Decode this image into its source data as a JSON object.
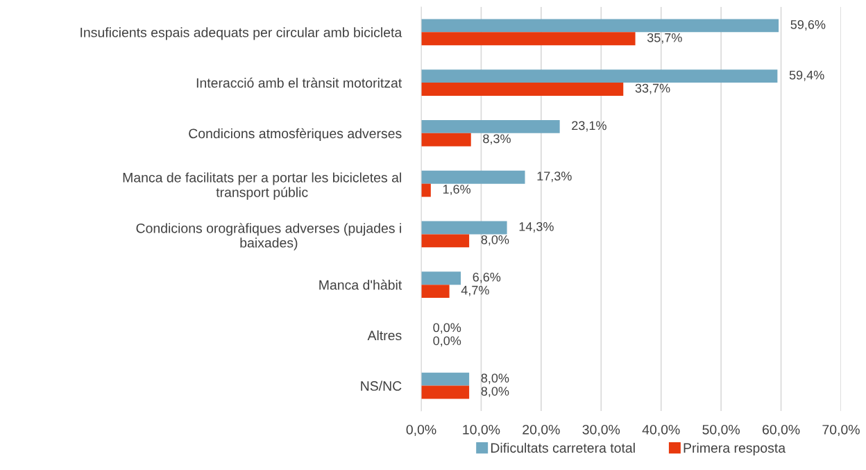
{
  "chart_data": {
    "type": "bar",
    "orientation": "horizontal",
    "categories": [
      "Insuficients espais adequats per circular amb bicicleta",
      "Interacció amb el trànsit motoritzat",
      "Condicions atmosfèriques adverses",
      "Manca de facilitats per a portar les bicicletes al\ntransport públic",
      "Condicions orogràfiques adverses (pujades i\nbaixades)",
      "Manca d'hàbit",
      "Altres",
      "NS/NC"
    ],
    "series": [
      {
        "name": "Dificultats carretera total",
        "color": "#70a8c1",
        "values": [
          59.6,
          59.4,
          23.1,
          17.3,
          14.3,
          6.6,
          0.0,
          8.0
        ],
        "value_labels": [
          "59,6%",
          "59,4%",
          "23,1%",
          "17,3%",
          "14,3%",
          "6,6%",
          "0,0%",
          "8,0%"
        ]
      },
      {
        "name": "Primera resposta",
        "color": "#e8390e",
        "values": [
          35.7,
          33.7,
          8.3,
          1.6,
          8.0,
          4.7,
          0.0,
          8.0
        ],
        "value_labels": [
          "35,7%",
          "33,7%",
          "8,3%",
          "1,6%",
          "8,0%",
          "4,7%",
          "0,0%",
          "8,0%"
        ]
      }
    ],
    "xlim": [
      0,
      70
    ],
    "xticks": [
      {
        "value": 0,
        "label": "0,0%"
      },
      {
        "value": 10,
        "label": "10,0%"
      },
      {
        "value": 20,
        "label": "20,0%"
      },
      {
        "value": 30,
        "label": "30,0%"
      },
      {
        "value": 40,
        "label": "40,0%"
      },
      {
        "value": 50,
        "label": "50,0%"
      },
      {
        "value": 60,
        "label": "60,0%"
      },
      {
        "value": 70,
        "label": "70,0%"
      }
    ],
    "grid": "x",
    "legend": "bottom"
  }
}
